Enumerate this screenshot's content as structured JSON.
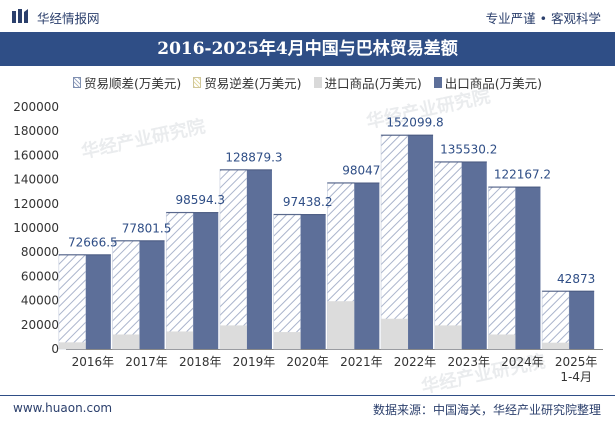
{
  "header": {
    "site_name": "华经情报网",
    "tagline": "专业严谨 • 客观科学"
  },
  "footer": {
    "website": "www.huaon.com",
    "source": "数据来源：中国海关，华经产业研究院整理"
  },
  "watermark": "华经产业研究院",
  "colors": {
    "title_bar": "#2f4e86",
    "export": "#5d6f99",
    "import": "#d9d9d9",
    "surplus_hatch": "#9aa7c3"
  },
  "chart_data": {
    "type": "bar",
    "title": "2016-2025年4月中国与巴林贸易差额",
    "legend": [
      "贸易顺差(万美元)",
      "贸易逆差(万美元)",
      "进口商品(万美元)",
      "出口商品(万美元)"
    ],
    "legend_placement": "top",
    "categories": [
      "2016年",
      "2017年",
      "2018年",
      "2019年",
      "2020年",
      "2021年",
      "2022年",
      "2023年",
      "2024年",
      "2025年\n1-4月"
    ],
    "ylim": [
      0,
      200000
    ],
    "yticks": [
      0,
      20000,
      40000,
      60000,
      80000,
      100000,
      120000,
      140000,
      160000,
      180000,
      200000
    ],
    "series": [
      {
        "name": "贸易顺差(万美元)",
        "values": [
          72666.5,
          77801.5,
          98594.3,
          128879.3,
          97438.2,
          98047,
          152099.8,
          135530.2,
          122167.2,
          42873
        ]
      },
      {
        "name": "贸易逆差(万美元)",
        "values": [
          0,
          0,
          0,
          0,
          0,
          0,
          0,
          0,
          0,
          0
        ]
      },
      {
        "name": "进口商品(万美元)",
        "values": [
          5500,
          12000,
          14500,
          19500,
          14000,
          39500,
          25000,
          19500,
          12000,
          5200
        ]
      },
      {
        "name": "出口商品(万美元)",
        "values": [
          78200,
          89800,
          113100,
          148400,
          111500,
          137600,
          177100,
          155000,
          134200,
          48100
        ]
      }
    ],
    "data_labels": [
      "72666.5",
      "77801.5",
      "98594.3",
      "128879.3",
      "97438.2",
      "98047",
      "152099.8",
      "135530.2",
      "122167.2",
      "42873"
    ]
  }
}
